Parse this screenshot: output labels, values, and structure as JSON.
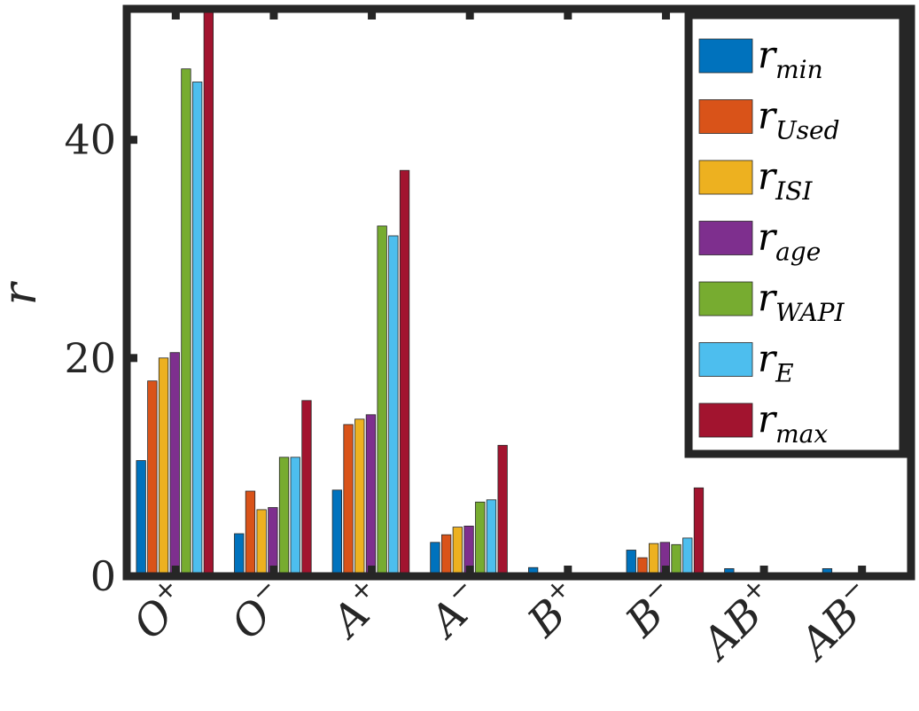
{
  "chart_data": {
    "type": "bar",
    "title": "",
    "xlabel": "",
    "ylabel": "r",
    "ylim": [
      0,
      52
    ],
    "yticks": [
      0,
      20,
      40
    ],
    "ytick_labels": [
      "0",
      "20",
      "40"
    ],
    "grid": false,
    "legend_position": "top-right",
    "categories": [
      {
        "base": "O",
        "sup": "+"
      },
      {
        "base": "O",
        "sup": "−"
      },
      {
        "base": "A",
        "sup": "+"
      },
      {
        "base": "A",
        "sup": "−"
      },
      {
        "base": "B",
        "sup": "+"
      },
      {
        "base": "B",
        "sup": "−"
      },
      {
        "base": "AB",
        "sup": "+"
      },
      {
        "base": "AB",
        "sup": "−"
      }
    ],
    "series": [
      {
        "name": "min",
        "color": "#0072BD",
        "values": [
          10.6,
          3.9,
          7.9,
          3.1,
          0.8,
          2.4,
          0.7,
          0.7
        ]
      },
      {
        "name": "Used",
        "color": "#D95319",
        "values": [
          17.9,
          7.8,
          13.9,
          3.8,
          0,
          1.7,
          0,
          0
        ]
      },
      {
        "name": "ISI",
        "color": "#EDB120",
        "values": [
          20.0,
          6.1,
          14.4,
          4.5,
          0,
          3.0,
          0,
          0
        ]
      },
      {
        "name": "age",
        "color": "#7E2F8E",
        "values": [
          20.5,
          6.3,
          14.8,
          4.6,
          0,
          3.1,
          0,
          0
        ]
      },
      {
        "name": "WAPI",
        "color": "#77AC30",
        "values": [
          46.5,
          10.9,
          32.1,
          6.8,
          0,
          2.9,
          0,
          0
        ]
      },
      {
        "name": "E",
        "color": "#4DBEEE",
        "values": [
          45.3,
          10.9,
          31.2,
          7.0,
          0,
          3.5,
          0,
          0
        ]
      },
      {
        "name": "max",
        "color": "#A2142F",
        "values": [
          52.0,
          16.1,
          37.2,
          12.0,
          0,
          8.1,
          0,
          0
        ]
      }
    ],
    "legend": [
      {
        "base": "r",
        "sub": "min"
      },
      {
        "base": "r",
        "sub": "Used"
      },
      {
        "base": "r",
        "sub": "ISI"
      },
      {
        "base": "r",
        "sub": "age"
      },
      {
        "base": "r",
        "sub": "WAPI"
      },
      {
        "base": "r",
        "sub": "E"
      },
      {
        "base": "r",
        "sub": "max"
      }
    ]
  }
}
